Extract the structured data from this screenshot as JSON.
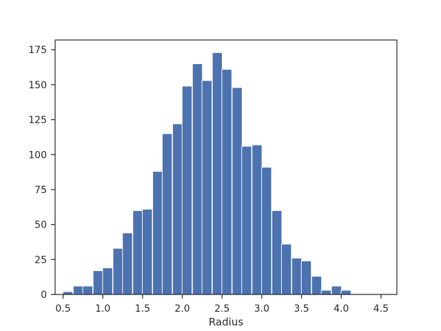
{
  "chart_data": {
    "type": "bar",
    "title": "",
    "xlabel": "Radius",
    "ylabel": "",
    "xlim": [
      0.4,
      4.7
    ],
    "ylim": [
      0,
      182
    ],
    "grid": false,
    "bar_color": "#4c72b0",
    "bin_width": 0.125,
    "bins": [
      {
        "x": 0.56,
        "count": 2
      },
      {
        "x": 0.69,
        "count": 6
      },
      {
        "x": 0.81,
        "count": 6
      },
      {
        "x": 0.94,
        "count": 17
      },
      {
        "x": 1.06,
        "count": 19
      },
      {
        "x": 1.19,
        "count": 33
      },
      {
        "x": 1.31,
        "count": 44
      },
      {
        "x": 1.44,
        "count": 60
      },
      {
        "x": 1.56,
        "count": 61
      },
      {
        "x": 1.69,
        "count": 88
      },
      {
        "x": 1.81,
        "count": 115
      },
      {
        "x": 1.94,
        "count": 122
      },
      {
        "x": 2.06,
        "count": 149
      },
      {
        "x": 2.19,
        "count": 165
      },
      {
        "x": 2.31,
        "count": 153
      },
      {
        "x": 2.44,
        "count": 173
      },
      {
        "x": 2.56,
        "count": 161
      },
      {
        "x": 2.69,
        "count": 148
      },
      {
        "x": 2.81,
        "count": 106
      },
      {
        "x": 2.94,
        "count": 107
      },
      {
        "x": 3.06,
        "count": 91
      },
      {
        "x": 3.19,
        "count": 60
      },
      {
        "x": 3.31,
        "count": 36
      },
      {
        "x": 3.44,
        "count": 26
      },
      {
        "x": 3.56,
        "count": 24
      },
      {
        "x": 3.69,
        "count": 13
      },
      {
        "x": 3.81,
        "count": 3
      },
      {
        "x": 3.94,
        "count": 6
      },
      {
        "x": 4.06,
        "count": 3
      },
      {
        "x": 4.19,
        "count": 0
      },
      {
        "x": 4.31,
        "count": 0
      },
      {
        "x": 4.44,
        "count": 0
      }
    ],
    "x_ticks": [
      "0.5",
      "1.0",
      "1.5",
      "2.0",
      "2.5",
      "3.0",
      "3.5",
      "4.0",
      "4.5"
    ],
    "y_ticks": [
      "0",
      "25",
      "50",
      "75",
      "100",
      "125",
      "150",
      "175"
    ]
  }
}
